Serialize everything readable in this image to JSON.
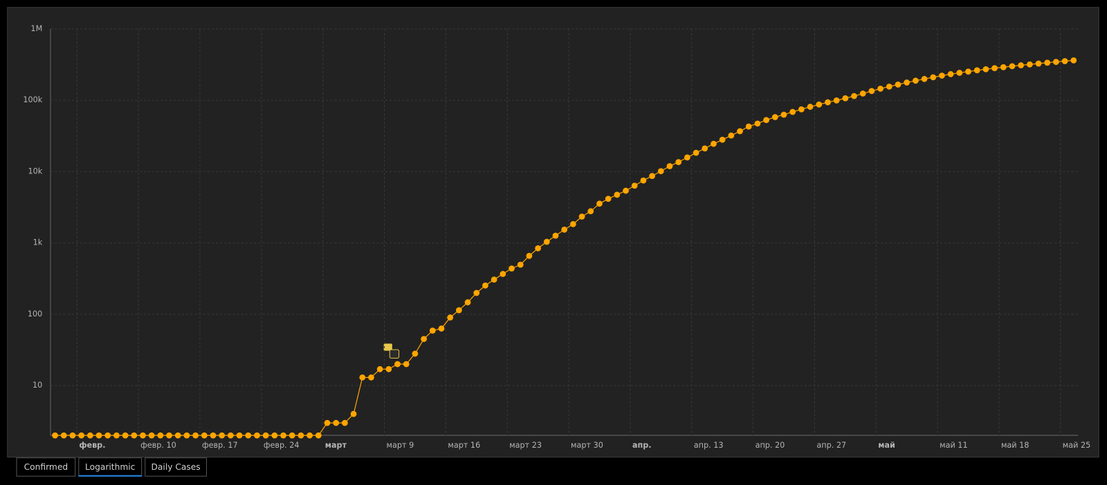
{
  "chart_data": {
    "type": "line",
    "log_scale": true,
    "grid": true,
    "color": "#ffa500",
    "x": [
      "01-31",
      "02-01",
      "02-02",
      "02-03",
      "02-04",
      "02-05",
      "02-06",
      "02-07",
      "02-08",
      "02-09",
      "02-10",
      "02-11",
      "02-12",
      "02-13",
      "02-14",
      "02-15",
      "02-16",
      "02-17",
      "02-18",
      "02-19",
      "02-20",
      "02-21",
      "02-22",
      "02-23",
      "02-24",
      "02-25",
      "02-26",
      "02-27",
      "02-28",
      "02-29",
      "03-01",
      "03-02",
      "03-03",
      "03-04",
      "03-05",
      "03-06",
      "03-07",
      "03-08",
      "03-09",
      "03-10",
      "03-11",
      "03-12",
      "03-13",
      "03-14",
      "03-15",
      "03-16",
      "03-17",
      "03-18",
      "03-19",
      "03-20",
      "03-21",
      "03-22",
      "03-23",
      "03-24",
      "03-25",
      "03-26",
      "03-27",
      "03-28",
      "03-29",
      "03-30",
      "03-31",
      "04-01",
      "04-02",
      "04-03",
      "04-04",
      "04-05",
      "04-06",
      "04-07",
      "04-08",
      "04-09",
      "04-10",
      "04-11",
      "04-12",
      "04-13",
      "04-14",
      "04-15",
      "04-16",
      "04-17",
      "04-18",
      "04-19",
      "04-20",
      "04-21",
      "04-22",
      "04-23",
      "04-24",
      "04-25",
      "04-26",
      "04-27",
      "04-28",
      "04-29",
      "04-30",
      "05-01",
      "05-02",
      "05-03",
      "05-04",
      "05-05",
      "05-06",
      "05-07",
      "05-08",
      "05-09",
      "05-10",
      "05-11",
      "05-12",
      "05-13",
      "05-14",
      "05-15",
      "05-16",
      "05-17",
      "05-18",
      "05-19",
      "05-20",
      "05-21",
      "05-22",
      "05-23",
      "05-24",
      "05-25",
      "05-26"
    ],
    "series": [
      {
        "name": "Confirmed",
        "color": "#ffa500",
        "values": [
          2,
          2,
          2,
          2,
          2,
          2,
          2,
          2,
          2,
          2,
          2,
          2,
          2,
          2,
          2,
          2,
          2,
          2,
          2,
          2,
          2,
          2,
          2,
          2,
          2,
          2,
          2,
          2,
          2,
          2,
          2,
          3,
          3,
          3,
          4,
          13,
          13,
          17,
          17,
          20,
          20,
          28,
          45,
          59,
          63,
          90,
          114,
          147,
          199,
          253,
          306,
          367,
          438,
          495,
          658,
          840,
          1036,
          1264,
          1534,
          1836,
          2337,
          2777,
          3548,
          4149,
          4731,
          5389,
          6343,
          7497,
          8672,
          10131,
          11917,
          13584,
          15770,
          18328,
          21102,
          24490,
          27938,
          32008,
          36793,
          42853,
          47121,
          52763,
          57999,
          62773,
          68622,
          74588,
          80949,
          87147,
          93558,
          99399,
          106498,
          114431,
          124054,
          134687,
          145268,
          155370,
          165929,
          177160,
          187859,
          198676,
          209688,
          221344,
          232243,
          242271,
          252245,
          262843,
          272043,
          281752,
          290678,
          299941,
          308705,
          317554,
          326448,
          335882,
          344481,
          353427,
          362342
        ]
      }
    ],
    "ylim": [
      2,
      1000000
    ],
    "yticks": [
      10,
      100,
      {
        "value": 1000,
        "label": "1k"
      },
      {
        "value": 10000,
        "label": "10k"
      },
      {
        "value": 100000,
        "label": "100k"
      },
      {
        "value": 1000000,
        "label": "1M"
      }
    ],
    "xticks": [
      {
        "value": "02-03",
        "label": "февр."
      },
      {
        "value": "02-10",
        "label": "февр. 10"
      },
      {
        "value": "02-17",
        "label": "февр. 17"
      },
      {
        "value": "02-24",
        "label": "февр. 24"
      },
      {
        "value": "03-02",
        "label": "март"
      },
      {
        "value": "03-09",
        "label": "март 9"
      },
      {
        "value": "03-16",
        "label": "март 16"
      },
      {
        "value": "03-23",
        "label": "март 23"
      },
      {
        "value": "03-30",
        "label": "март 30"
      },
      {
        "value": "04-06",
        "label": "апр."
      },
      {
        "value": "04-13",
        "label": "апр. 13"
      },
      {
        "value": "04-20",
        "label": "апр. 20"
      },
      {
        "value": "04-27",
        "label": "апр. 27"
      },
      {
        "value": "05-04",
        "label": "май"
      },
      {
        "value": "05-11",
        "label": "май 11"
      },
      {
        "value": "05-18",
        "label": "май 18"
      },
      {
        "value": "05-25",
        "label": "май 25"
      }
    ]
  },
  "buttons": [
    "Confirmed",
    "Logarithmic",
    "Daily Cases"
  ],
  "active_button": 1
}
